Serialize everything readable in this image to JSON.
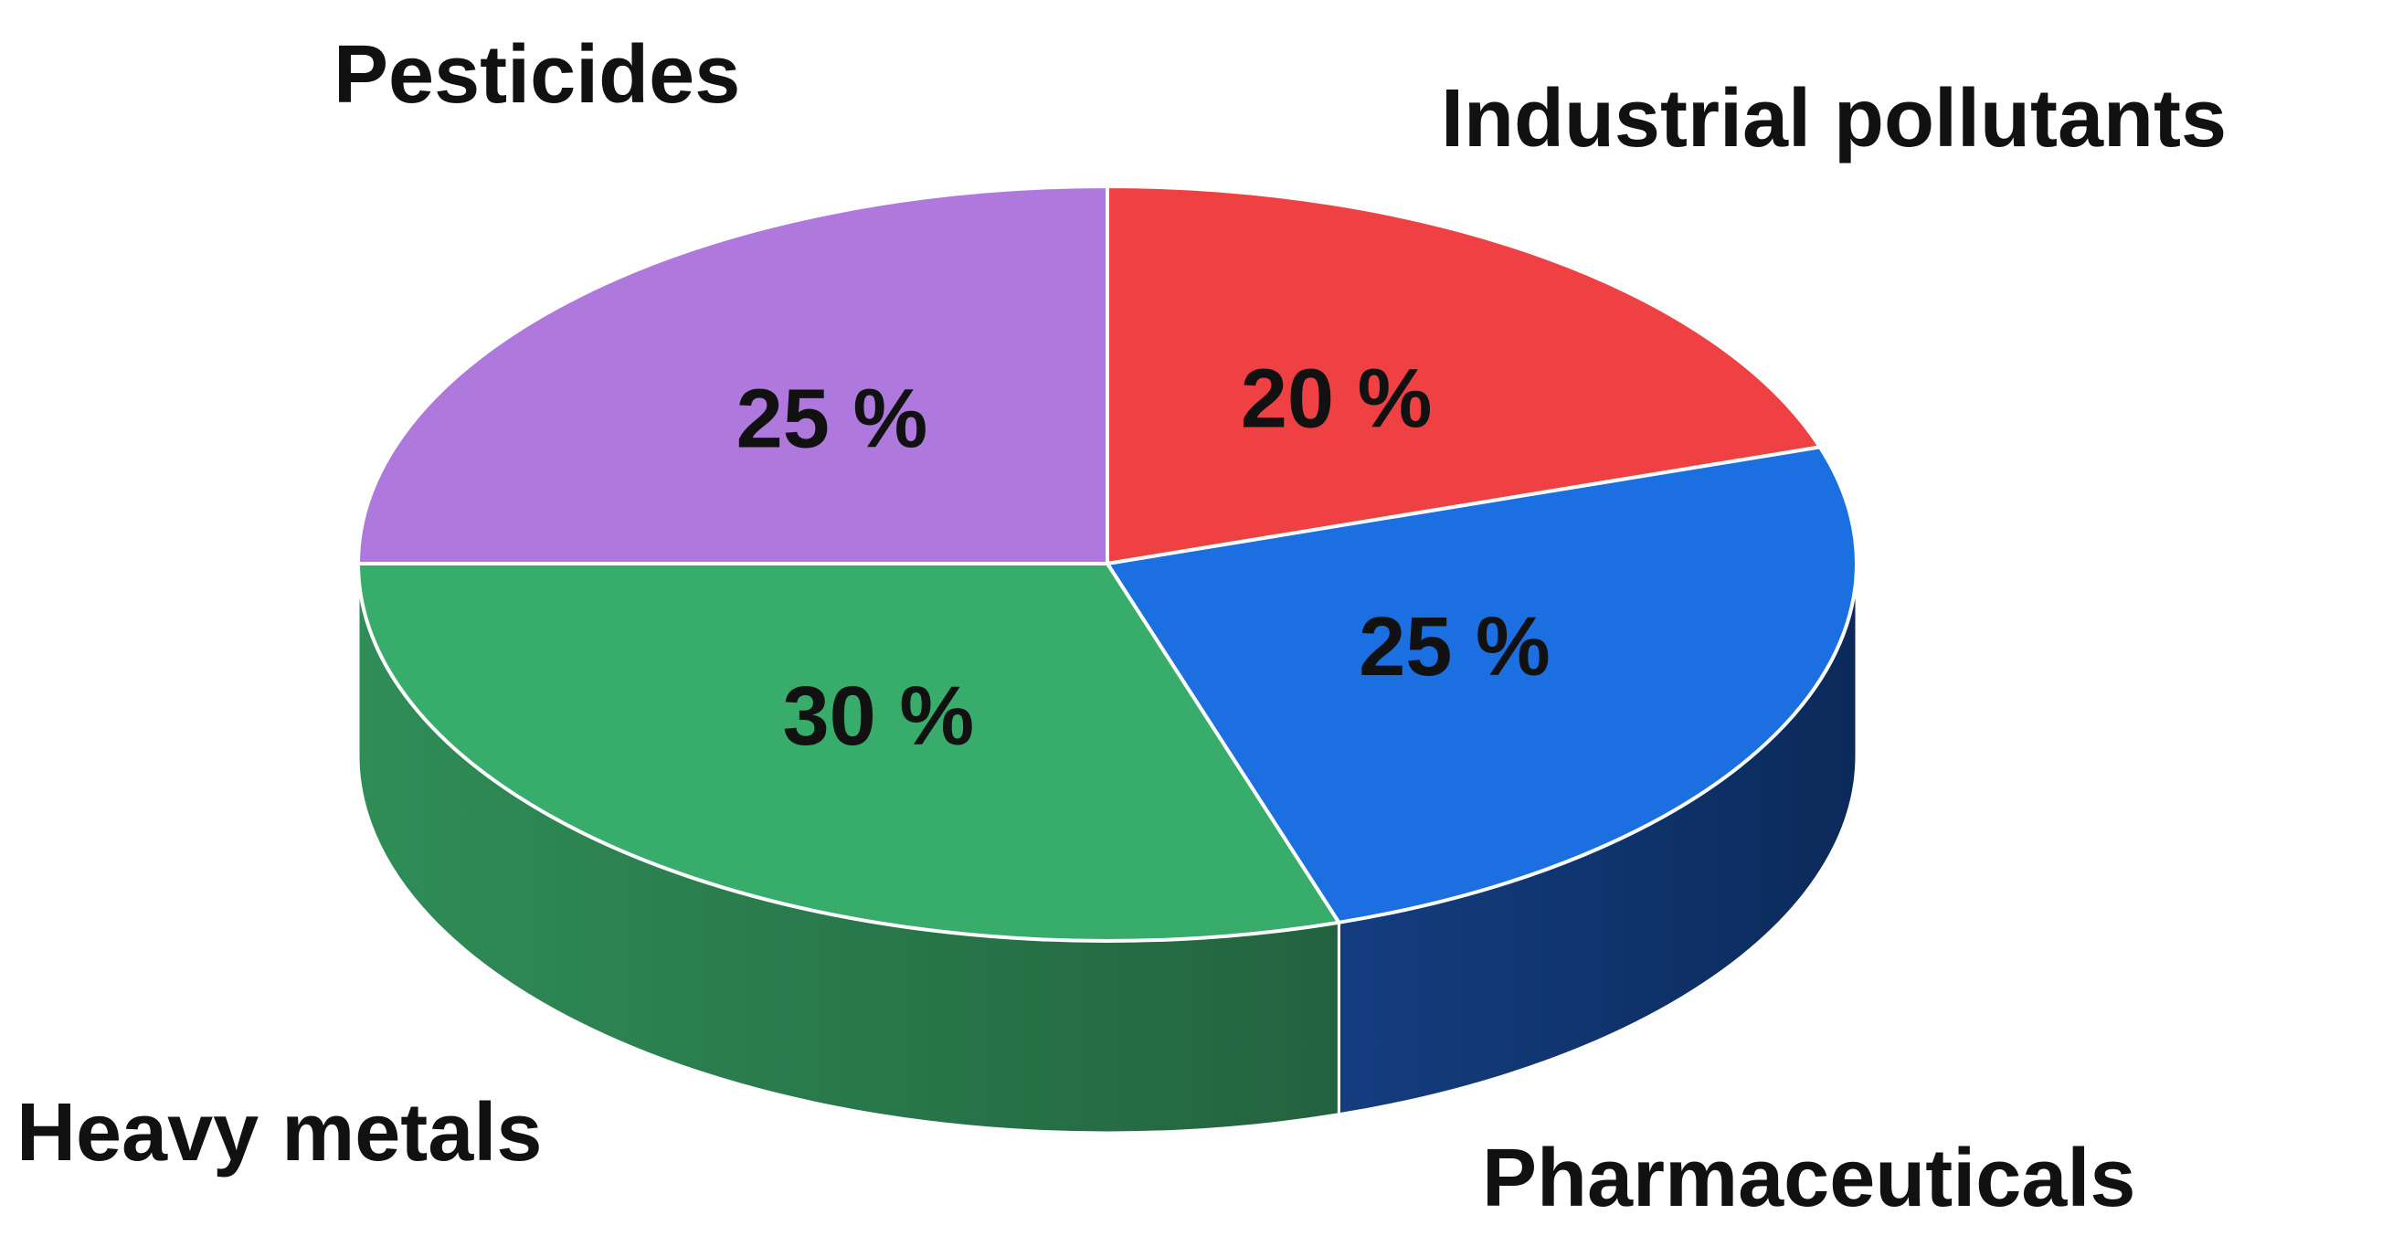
{
  "chart_data": {
    "type": "pie",
    "style": "3d",
    "categories": [
      "Industrial pollutants",
      "Pharmaceuticals",
      "Heavy metals",
      "Pesticides"
    ],
    "values": [
      20,
      25,
      30,
      25
    ],
    "value_labels": [
      "20 %",
      "25 %",
      "30 %",
      "25 %"
    ],
    "colors": {
      "top": [
        "#ef4043",
        "#1b6fe0",
        "#38ac6b",
        "#ae78dd"
      ],
      "side_light": [
        "#b52f31",
        "#143d80",
        "#2f8d57",
        "#8458ad"
      ],
      "side_dark": [
        "#8a2224",
        "#0b2a5a",
        "#22633f",
        "#5f3d80"
      ]
    },
    "legend": "none"
  }
}
